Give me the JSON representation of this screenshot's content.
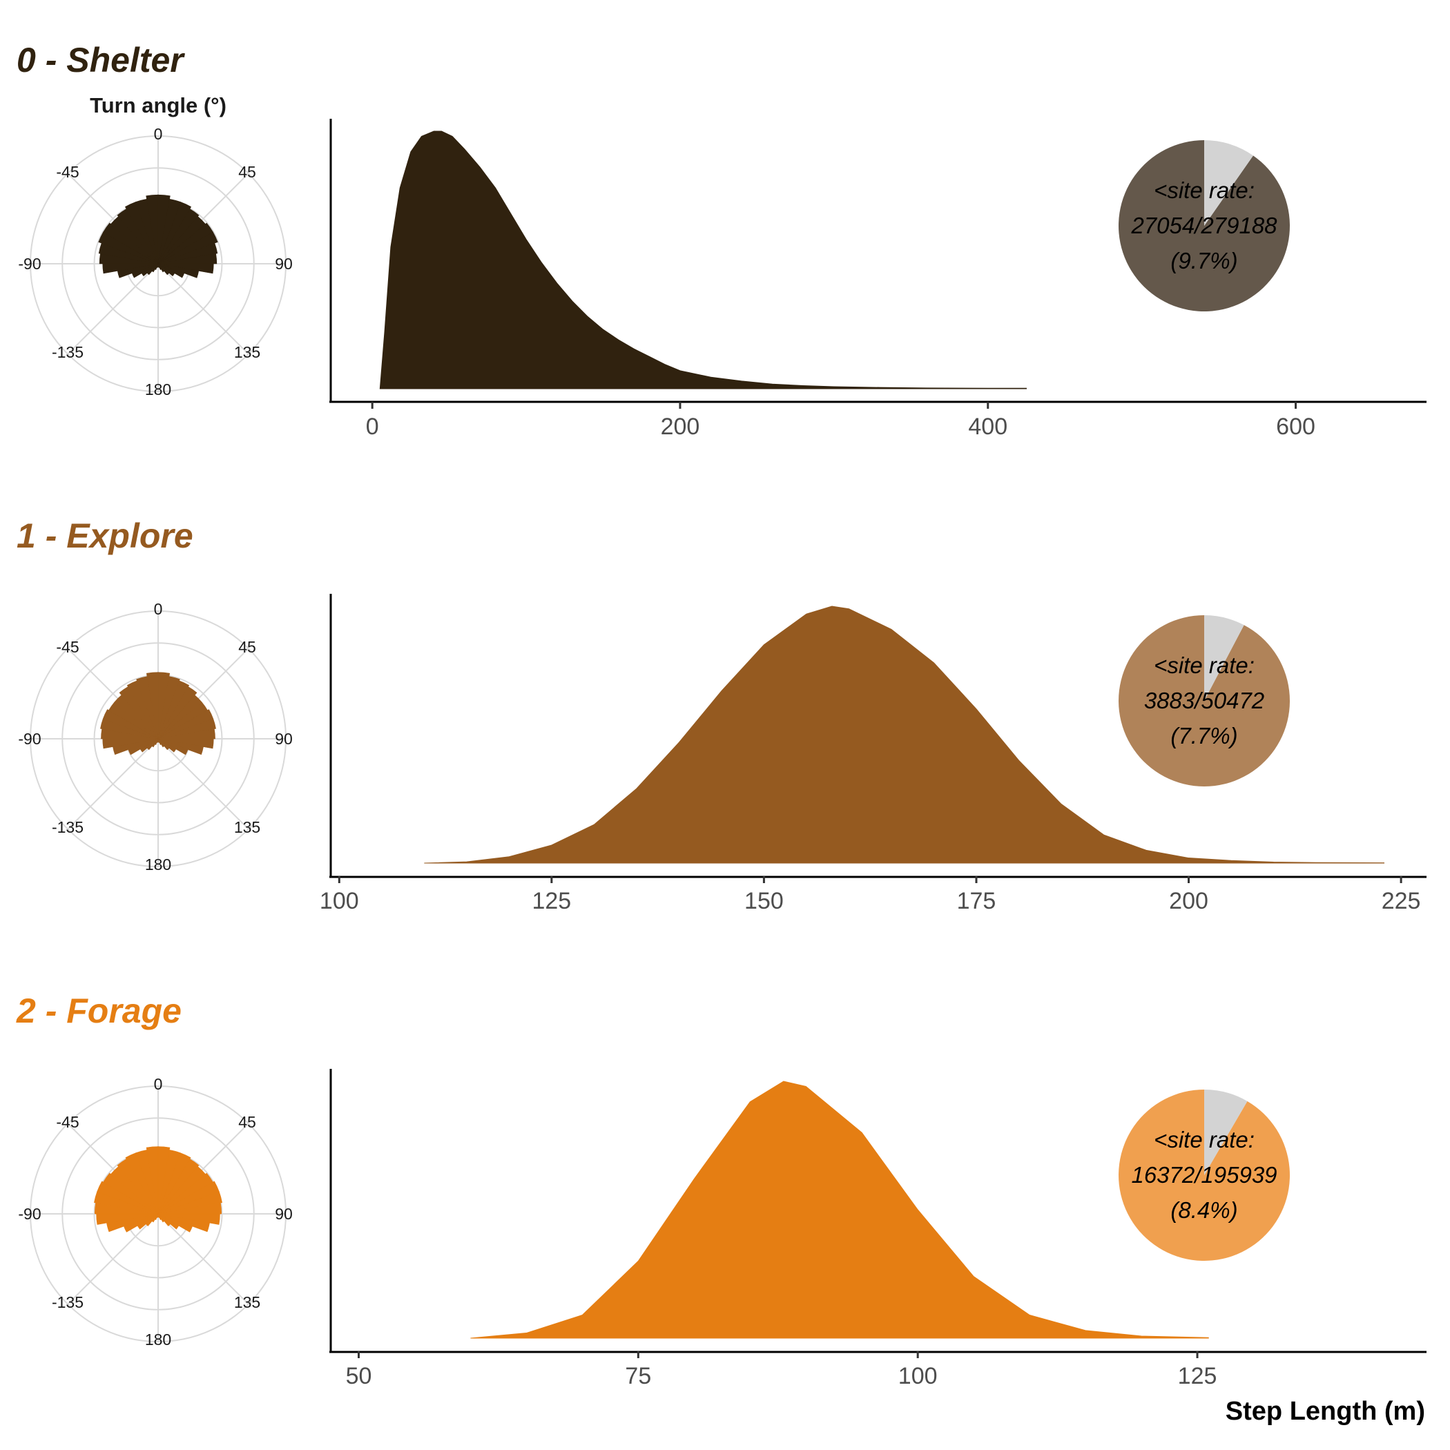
{
  "chart_data": [
    {
      "type": "area",
      "state_title": "0 - Shelter",
      "rose_title": "Turn angle (°)",
      "color": "#30220f",
      "pie_color": "#64584b",
      "turn_angle_labels": [
        "0",
        "45",
        "90",
        "135",
        "180",
        "-135",
        "-90",
        "-45"
      ],
      "turn_angle_rose": {
        "bin_width_deg": 10,
        "centers": [
          -175,
          -165,
          -155,
          -145,
          -135,
          -125,
          -115,
          -105,
          -95,
          -85,
          -75,
          -65,
          -55,
          -45,
          -35,
          -25,
          -15,
          -5,
          5,
          15,
          25,
          35,
          45,
          55,
          65,
          75,
          85,
          95,
          105,
          115,
          125,
          135,
          145,
          155,
          165,
          175
        ],
        "radius_fraction": [
          0.04,
          0.05,
          0.08,
          0.12,
          0.18,
          0.24,
          0.35,
          0.52,
          0.7,
          0.74,
          0.76,
          0.8,
          0.8,
          0.78,
          0.8,
          0.83,
          0.83,
          0.87,
          0.87,
          0.83,
          0.83,
          0.8,
          0.78,
          0.8,
          0.8,
          0.76,
          0.74,
          0.7,
          0.52,
          0.35,
          0.24,
          0.18,
          0.12,
          0.08,
          0.05,
          0.04
        ]
      },
      "step_length_density": {
        "x": [
          5,
          8,
          12,
          18,
          25,
          32,
          40,
          45,
          52,
          60,
          70,
          80,
          90,
          100,
          110,
          120,
          130,
          140,
          150,
          160,
          170,
          180,
          190,
          200,
          220,
          240,
          260,
          280,
          300,
          330,
          360,
          400,
          425
        ],
        "y": [
          0.0,
          0.22,
          0.55,
          0.78,
          0.92,
          0.98,
          1.0,
          1.0,
          0.98,
          0.93,
          0.86,
          0.78,
          0.68,
          0.58,
          0.49,
          0.41,
          0.34,
          0.28,
          0.23,
          0.19,
          0.155,
          0.125,
          0.095,
          0.07,
          0.045,
          0.03,
          0.018,
          0.012,
          0.008,
          0.005,
          0.003,
          0.002,
          0.002
        ]
      },
      "xlim": [
        -27,
        685
      ],
      "x_ticks": [
        "0",
        "200",
        "400",
        "600"
      ],
      "x_tick_values": [
        0,
        200,
        400,
        600
      ],
      "pie": {
        "line1": "<site rate:",
        "line2": "27054/279188",
        "line3": "(9.7%)",
        "fraction": 0.097
      }
    },
    {
      "type": "area",
      "state_title": "1 - Explore",
      "color": "#955a20",
      "pie_color": "#b08359",
      "turn_angle_labels": [
        "0",
        "45",
        "90",
        "135",
        "180",
        "-135",
        "-90",
        "-45"
      ],
      "turn_angle_rose": {
        "bin_width_deg": 10,
        "centers": [
          -175,
          -165,
          -155,
          -145,
          -135,
          -125,
          -115,
          -105,
          -95,
          -85,
          -75,
          -65,
          -55,
          -45,
          -35,
          -25,
          -15,
          -5,
          5,
          15,
          25,
          35,
          45,
          55,
          65,
          75,
          85,
          95,
          105,
          115,
          125,
          135,
          145,
          155,
          165,
          175
        ],
        "radius_fraction": [
          0.04,
          0.05,
          0.08,
          0.12,
          0.18,
          0.26,
          0.4,
          0.58,
          0.7,
          0.72,
          0.74,
          0.74,
          0.72,
          0.72,
          0.76,
          0.78,
          0.8,
          0.84,
          0.84,
          0.8,
          0.78,
          0.76,
          0.72,
          0.72,
          0.74,
          0.74,
          0.72,
          0.7,
          0.58,
          0.4,
          0.26,
          0.18,
          0.12,
          0.08,
          0.05,
          0.04
        ]
      },
      "step_length_density": {
        "x": [
          110,
          115,
          120,
          125,
          130,
          135,
          140,
          145,
          150,
          155,
          158,
          160,
          165,
          170,
          175,
          180,
          185,
          190,
          195,
          200,
          205,
          210,
          215,
          223
        ],
        "y": [
          0.0,
          0.005,
          0.025,
          0.07,
          0.15,
          0.29,
          0.47,
          0.67,
          0.85,
          0.97,
          1.0,
          0.99,
          0.91,
          0.78,
          0.6,
          0.4,
          0.23,
          0.11,
          0.05,
          0.02,
          0.01,
          0.004,
          0.002,
          0.001
        ]
      },
      "xlim": [
        99,
        228
      ],
      "x_ticks": [
        "100",
        "125",
        "150",
        "175",
        "200",
        "225"
      ],
      "x_tick_values": [
        100,
        125,
        150,
        175,
        200,
        225
      ],
      "pie": {
        "line1": "<site rate:",
        "line2": "3883/50472",
        "line3": "(7.7%)",
        "fraction": 0.077
      }
    },
    {
      "type": "area",
      "state_title": "2 - Forage",
      "color": "#e57e13",
      "pie_color": "#f0a04f",
      "turn_angle_labels": [
        "0",
        "45",
        "90",
        "135",
        "180",
        "-135",
        "-90",
        "-45"
      ],
      "turn_angle_rose": {
        "bin_width_deg": 10,
        "centers": [
          -175,
          -165,
          -155,
          -145,
          -135,
          -125,
          -115,
          -105,
          -95,
          -85,
          -75,
          -65,
          -55,
          -45,
          -35,
          -25,
          -15,
          -5,
          5,
          15,
          25,
          35,
          45,
          55,
          65,
          75,
          85,
          95,
          105,
          115,
          125,
          135,
          145,
          155,
          165,
          175
        ],
        "radius_fraction": [
          0.04,
          0.05,
          0.08,
          0.12,
          0.2,
          0.3,
          0.46,
          0.66,
          0.78,
          0.8,
          0.82,
          0.82,
          0.8,
          0.78,
          0.8,
          0.82,
          0.82,
          0.85,
          0.85,
          0.82,
          0.82,
          0.8,
          0.78,
          0.8,
          0.82,
          0.82,
          0.8,
          0.78,
          0.66,
          0.46,
          0.3,
          0.2,
          0.12,
          0.08,
          0.05,
          0.04
        ]
      },
      "step_length_density": {
        "x": [
          60,
          65,
          70,
          75,
          80,
          85,
          88,
          90,
          95,
          100,
          105,
          110,
          115,
          120,
          126
        ],
        "y": [
          0.0,
          0.02,
          0.09,
          0.3,
          0.62,
          0.92,
          1.0,
          0.98,
          0.8,
          0.5,
          0.24,
          0.09,
          0.03,
          0.008,
          0.002
        ]
      },
      "xlim": [
        47.5,
        145.5
      ],
      "x_ticks": [
        "50",
        "75",
        "100",
        "125"
      ],
      "x_tick_values": [
        50,
        75,
        100,
        125
      ],
      "pie": {
        "line1": "<site rate:",
        "line2": "16372/195939",
        "line3": "(8.4%)",
        "fraction": 0.084
      }
    }
  ],
  "xlabel": "Step Length (m)"
}
